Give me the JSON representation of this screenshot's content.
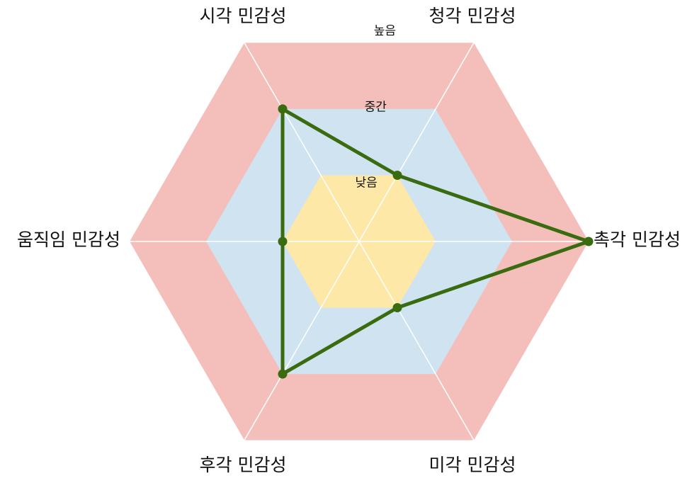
{
  "chart_data": {
    "type": "radar",
    "title": "",
    "axes": [
      "시각 민감성",
      "청각 민감성",
      "촉각 민감성",
      "미각 민감성",
      "후각 민감성",
      "움직임 민감성"
    ],
    "levels": [
      "낮음",
      "중간",
      "높음"
    ],
    "range": [
      0,
      3
    ],
    "values": [
      2,
      1,
      3,
      1,
      2,
      1
    ],
    "colors": {
      "level_low": "#fde8a8",
      "level_mid": "#cfe3f1",
      "level_high": "#f4bfbb",
      "series": "#3a6b0f",
      "grid": "#ffffff"
    },
    "grid": true,
    "legend": "none"
  }
}
